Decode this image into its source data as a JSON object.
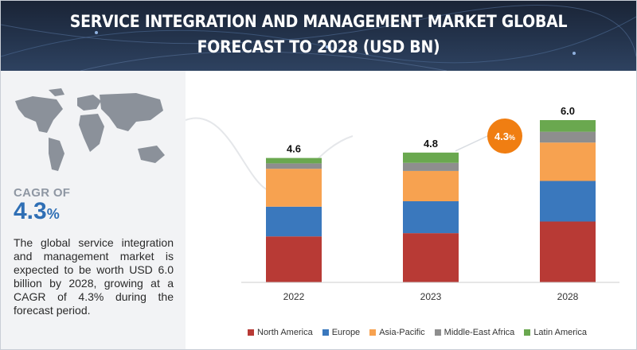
{
  "title": "SERVICE INTEGRATION AND MANAGEMENT MARKET GLOBAL FORECAST TO 2028 (USD BN)",
  "cagr": {
    "label": "CAGR OF",
    "value": "4.3",
    "unit": "%"
  },
  "description": "The global service integration and management market is expected to be worth USD 6.0 billion by 2028, growing at a CAGR of 4.3% during the forecast period.",
  "badge": {
    "value": "4.3",
    "unit": "%"
  },
  "colors": {
    "North America": "#b83a35",
    "Europe": "#3a78bd",
    "Asia-Pacific": "#f7a250",
    "Middle-East Africa": "#8e8e8e",
    "Latin America": "#6aa84f",
    "badge": "#f07e12"
  },
  "chart_data": {
    "type": "bar",
    "stacked": true,
    "categories": [
      "2022",
      "2023",
      "2028"
    ],
    "totals": [
      "4.6",
      "4.8",
      "6.0"
    ],
    "ylim": [
      0,
      6.5
    ],
    "series": [
      {
        "name": "North America",
        "values": [
          1.7,
          1.82,
          2.25
        ]
      },
      {
        "name": "Europe",
        "values": [
          1.1,
          1.18,
          1.5
        ]
      },
      {
        "name": "Asia-Pacific",
        "values": [
          1.4,
          1.12,
          1.42
        ]
      },
      {
        "name": "Middle-East Africa",
        "values": [
          0.2,
          0.3,
          0.4
        ]
      },
      {
        "name": "Latin America",
        "values": [
          0.2,
          0.38,
          0.43
        ]
      }
    ],
    "legend_position": "bottom"
  }
}
